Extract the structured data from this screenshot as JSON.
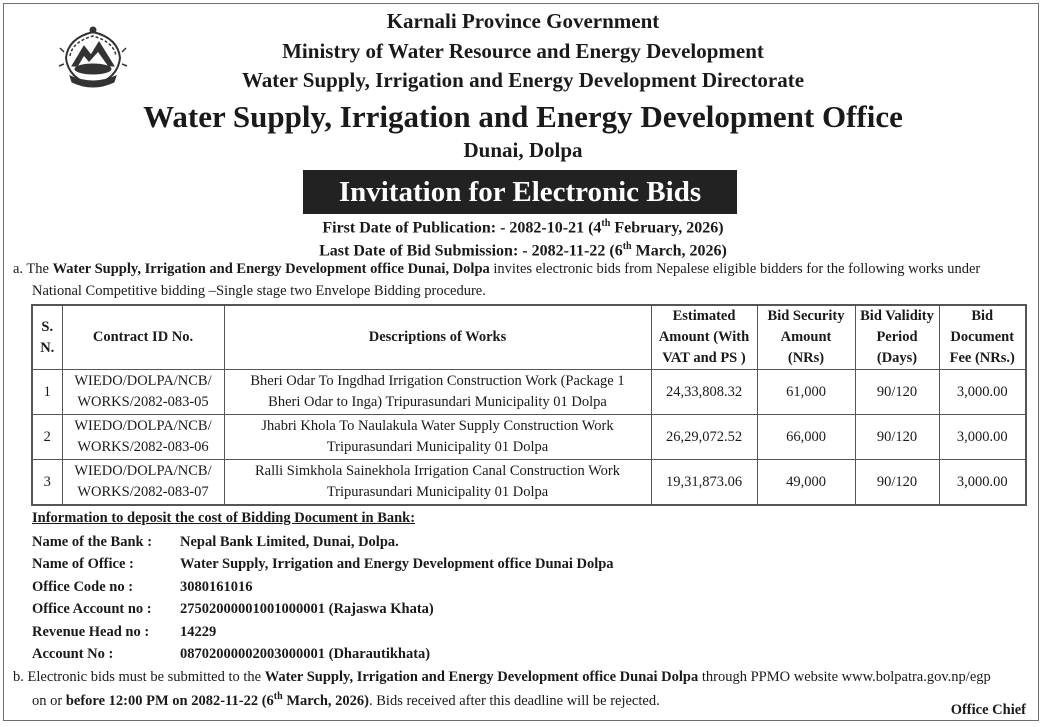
{
  "header": {
    "line1": "Karnali Province Government",
    "line2": "Ministry of Water Resource and Energy Development",
    "line3": "Water Supply, Irrigation and Energy Development Directorate",
    "office": "Water Supply, Irrigation and Energy Development Office",
    "location": "Dunai, Dolpa"
  },
  "banner": {
    "title": "Invitation for Electronic Bids"
  },
  "dates": {
    "first_pre": "First Date of Publication: - 2082-10-21 (4",
    "first_sup": "th",
    "first_post": " February, 2026)",
    "last_pre": "Last Date of Bid Submission: - 2082-11-22 (6",
    "last_sup": "th",
    "last_post": " March, 2026)"
  },
  "para_a": {
    "prefix": "a. The ",
    "office": "Water Supply, Irrigation and Energy Development office Dunai, Dolpa",
    "text": " invites electronic bids from Nepalese eligible bidders for the following works under",
    "line2": "National Competitive bidding –Single stage two Envelope Bidding procedure."
  },
  "table": {
    "headers": {
      "sn1": "S.",
      "sn2": "N.",
      "contract": "Contract ID No.",
      "desc": "Descriptions of Works",
      "est1": "Estimated",
      "est2": "Amount (With",
      "est3": "VAT and PS )",
      "sec1": "Bid Security",
      "sec2": "Amount",
      "sec3": "(NRs)",
      "val1": "Bid Validity",
      "val2": "Period",
      "val3": "(Days)",
      "fee1": "Bid",
      "fee2": "Document",
      "fee3": "Fee (NRs.)"
    },
    "rows": [
      {
        "sn": "1",
        "contract1": "WIEDO/DOLPA/NCB/",
        "contract2": "WORKS/2082-083-05",
        "desc1": "Bheri Odar To Ingdhad Irrigation Construction Work (Package 1",
        "desc2": "Bheri Odar to Inga) Tripurasundari Municipality 01 Dolpa",
        "estimate": "24,33,808.32",
        "security": "61,000",
        "validity": "90/120",
        "fee": "3,000.00"
      },
      {
        "sn": "2",
        "contract1": "WIEDO/DOLPA/NCB/",
        "contract2": "WORKS/2082-083-06",
        "desc1": "Jhabri Khola To Naulakula Water Supply Construction Work",
        "desc2": "Tripurasundari Municipality 01 Dolpa",
        "estimate": "26,29,072.52",
        "security": "66,000",
        "validity": "90/120",
        "fee": "3,000.00"
      },
      {
        "sn": "3",
        "contract1": "WIEDO/DOLPA/NCB/",
        "contract2": "WORKS/2082-083-07",
        "desc1": "Ralli Simkhola Sainekhola  Irrigation Canal  Construction Work",
        "desc2": "Tripurasundari Municipality 01 Dolpa",
        "estimate": "19,31,873.06",
        "security": "49,000",
        "validity": "90/120",
        "fee": "3,000.00"
      }
    ]
  },
  "bank": {
    "title": "Information to deposit the cost of Bidding Document in Bank:",
    "rows": [
      {
        "label": "Name of the Bank :",
        "value": "Nepal Bank Limited, Dunai, Dolpa."
      },
      {
        "label": "Name of Office :",
        "value": "Water Supply, Irrigation and Energy Development office Dunai Dolpa"
      },
      {
        "label": "Office Code no :",
        "value": "3080161016"
      },
      {
        "label": "Office Account no :",
        "value": "27502000001001000001 (Rajaswa Khata)"
      },
      {
        "label": "Revenue Head no :",
        "value": "14229"
      },
      {
        "label": "Account No :",
        "value": "08702000002003000001 (Dharautikhata)"
      }
    ]
  },
  "para_b": {
    "prefix": "b. Electronic bids must be submitted to the ",
    "office": "Water Supply, Irrigation and Energy Development office Dunai Dolpa",
    "text": " through PPMO website www.bolpatra.gov.np/egp",
    "line2_pre": "on or ",
    "deadline_pre": "before 12:00 PM on 2082-11-22 (6",
    "deadline_sup": "th",
    "deadline_post": " March, 2026)",
    "line2_post": ". Bids received after this deadline will be rejected."
  },
  "signature": {
    "title": "Office Chief"
  },
  "colors": {
    "banner_bg": "#222222",
    "banner_text": "#ffffff",
    "text": "#1a1a1a"
  },
  "icons": {
    "emblem": "nepal-government-emblem-icon"
  }
}
